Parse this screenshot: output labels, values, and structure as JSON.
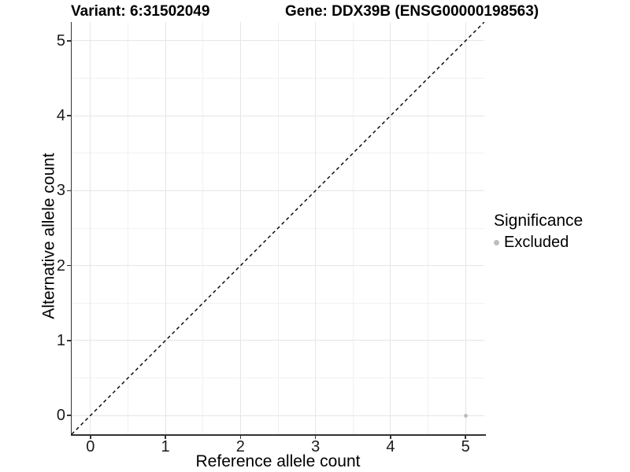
{
  "header": {
    "variant_title": "Variant: 6:31502049",
    "gene_title": "Gene: DDX39B (ENSG00000198563)"
  },
  "chart_data": {
    "type": "scatter",
    "title_left": "Variant: 6:31502049",
    "title_right": "Gene: DDX39B (ENSG00000198563)",
    "xlabel": "Reference allele count",
    "ylabel": "Alternative allele count",
    "xlim": [
      -0.25,
      5.25
    ],
    "ylim": [
      -0.25,
      5.25
    ],
    "x_ticks": [
      0,
      1,
      2,
      3,
      4,
      5
    ],
    "x_tick_labels": [
      "0",
      "1",
      "2",
      "3",
      "4",
      "5"
    ],
    "y_ticks": [
      0,
      1,
      2,
      3,
      4,
      5
    ],
    "y_tick_labels": [
      "0",
      "1",
      "2",
      "3",
      "4",
      "5"
    ],
    "x_minor_ticks": [
      0.5,
      1.5,
      2.5,
      3.5,
      4.5
    ],
    "y_minor_ticks": [
      0.5,
      1.5,
      2.5,
      3.5,
      4.5
    ],
    "grid": true,
    "legend_position": "right",
    "identity_line": {
      "slope": 1,
      "intercept": 0,
      "style": "dashed",
      "color": "#000000"
    },
    "series": [
      {
        "name": "Excluded",
        "color": "#bdbdbd",
        "points": [
          {
            "x": 5,
            "y": 0
          }
        ]
      }
    ],
    "legend": {
      "title": "Significance",
      "items": [
        {
          "label": "Excluded",
          "color": "#bdbdbd"
        }
      ]
    }
  },
  "colors": {
    "background": "#ffffff",
    "axis_line": "#333333",
    "grid_major": "#e6e6e6",
    "grid_minor": "#f1f1f1",
    "excluded_point": "#bdbdbd",
    "dashed_line": "#000000",
    "text": "#000000"
  }
}
